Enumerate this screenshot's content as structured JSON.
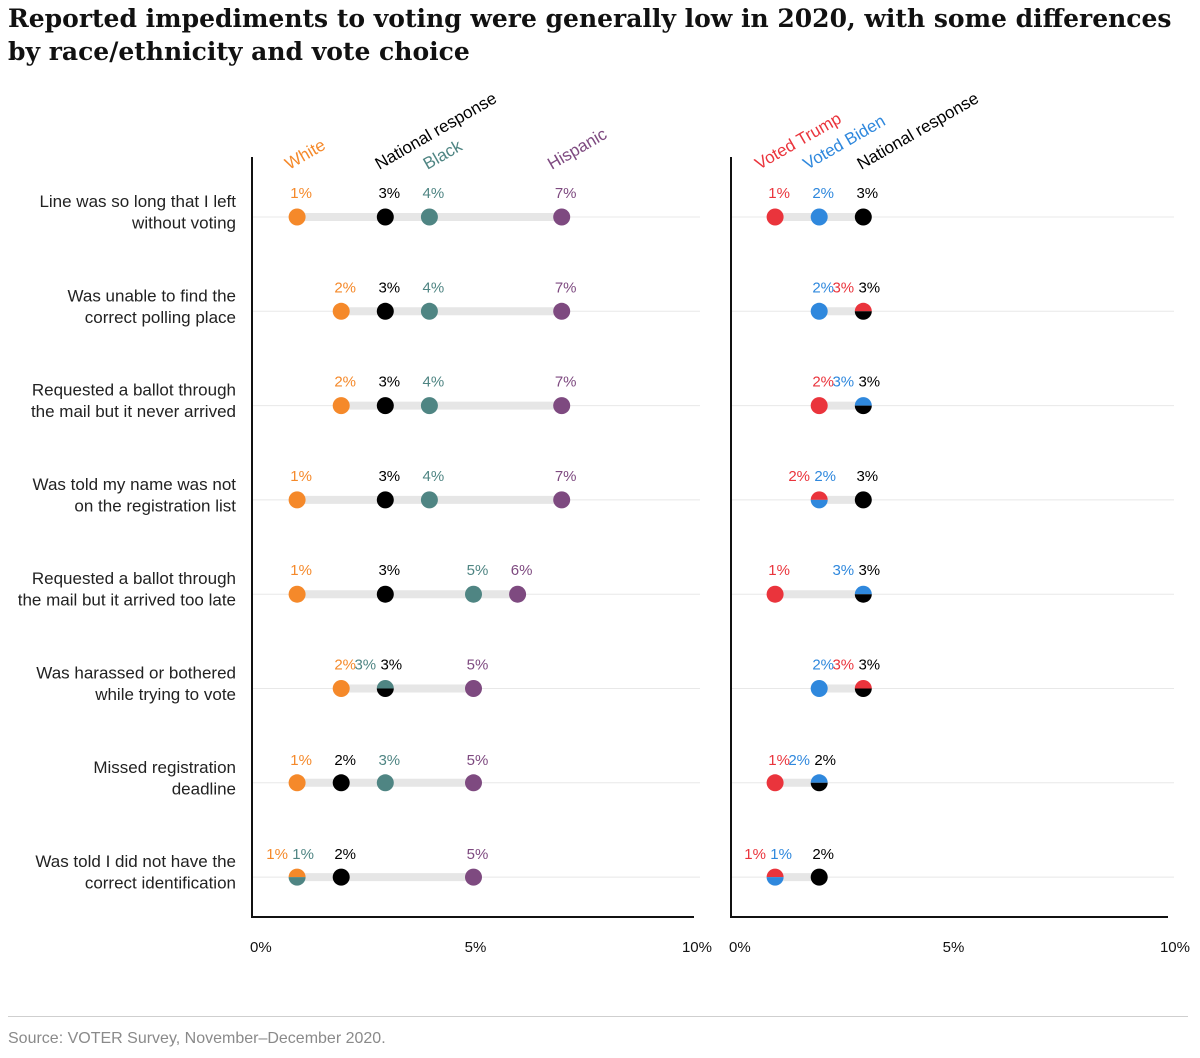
{
  "title": "Reported impediments to voting were generally low in 2020, with some differences by race/ethnicity and vote choice",
  "source": "Source: VOTER Survey, November–December 2020.",
  "colors": {
    "white": "#f5892a",
    "black": "#4f8583",
    "hispanic": "#7e4a80",
    "national": "#000000",
    "trump": "#ea343c",
    "biden": "#2f88dd",
    "range_bar": "#e6e6e6",
    "gridline": "#e8e8e8"
  },
  "chart_data": [
    {
      "type": "dot-range",
      "panel": "race-ethnicity",
      "categories": [
        "Line was so long that I left without voting",
        "Was unable to find the correct polling place",
        "Requested a ballot through the mail but it never arrived",
        "Was told my name was not on the registration list",
        "Requested a ballot through the mail but it arrived too late",
        "Was harassed or bothered while trying to vote",
        "Missed registration deadline",
        "Was told I did not have the correct identification"
      ],
      "xlim": [
        0,
        10
      ],
      "x_tick_labels": [
        "0%",
        "5%",
        "10%"
      ],
      "x_ticks": [
        0,
        5,
        10
      ],
      "series": [
        {
          "name": "White",
          "color_key": "white",
          "values": [
            1,
            2,
            2,
            1,
            1,
            2,
            1,
            1
          ]
        },
        {
          "name": "National response",
          "color_key": "national",
          "values": [
            3,
            3,
            3,
            3,
            3,
            3,
            2,
            2
          ]
        },
        {
          "name": "Black",
          "color_key": "black",
          "values": [
            4,
            4,
            4,
            4,
            5,
            3,
            3,
            1
          ]
        },
        {
          "name": "Hispanic",
          "color_key": "hispanic",
          "values": [
            7,
            7,
            7,
            7,
            6,
            5,
            5,
            5
          ]
        }
      ]
    },
    {
      "type": "dot-range",
      "panel": "vote-choice",
      "categories": [
        "Line was so long that I left without voting",
        "Was unable to find the correct polling place",
        "Requested a ballot through the mail but it never arrived",
        "Was told my name was not on the registration list",
        "Requested a ballot through the mail but it arrived too late",
        "Was harassed or bothered while trying to vote",
        "Missed registration deadline",
        "Was told I did not have the correct identification"
      ],
      "xlim": [
        0,
        10
      ],
      "x_tick_labels": [
        "0%",
        "5%",
        "10%"
      ],
      "x_ticks": [
        0,
        5,
        10
      ],
      "series": [
        {
          "name": "Voted Trump",
          "color_key": "trump",
          "values": [
            1,
            3,
            2,
            2,
            1,
            3,
            1,
            1
          ]
        },
        {
          "name": "Voted Biden",
          "color_key": "biden",
          "values": [
            2,
            2,
            3,
            2,
            3,
            2,
            2,
            1
          ]
        },
        {
          "name": "National response",
          "color_key": "national",
          "values": [
            3,
            3,
            3,
            3,
            3,
            3,
            2,
            2
          ]
        }
      ]
    }
  ],
  "row_labels": [
    [
      "Line was so long that I left",
      "without voting"
    ],
    [
      "Was unable to find the",
      "correct polling place"
    ],
    [
      "Requested a ballot through",
      "the mail but it never arrived"
    ],
    [
      "Was told my name was not",
      "on the registration list"
    ],
    [
      "Requested a ballot through",
      "the mail but it arrived too late"
    ],
    [
      "Was harassed or bothered",
      "while trying to vote"
    ],
    [
      "Missed registration",
      "deadline"
    ],
    [
      "Was told I did not have the",
      "correct identification"
    ]
  ]
}
